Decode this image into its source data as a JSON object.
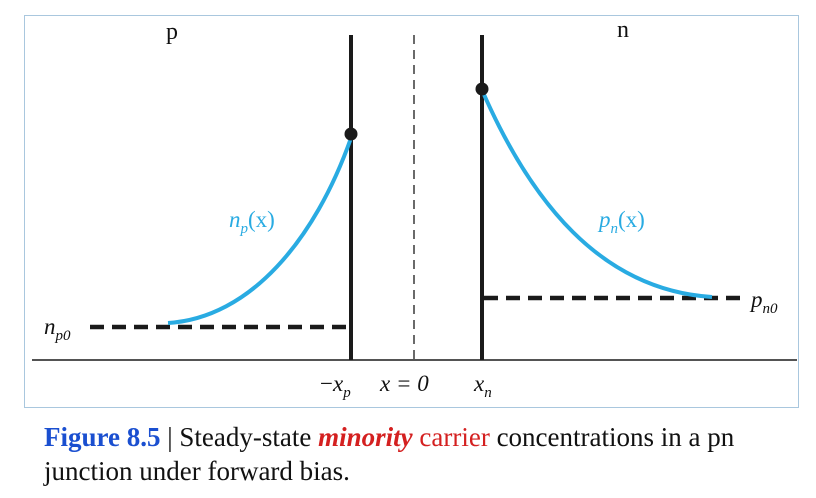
{
  "diagram": {
    "region_p": "p",
    "region_n": "n",
    "curve_p_label": {
      "base": "n",
      "sub": "p",
      "arg": "(x)"
    },
    "curve_n_label": {
      "base": "p",
      "sub": "n",
      "arg": "(x)"
    },
    "np0_label": {
      "base": "n",
      "sub": "p0"
    },
    "pn0_label": {
      "base": "p",
      "sub": "n0"
    },
    "xp_label": {
      "prefix": "−",
      "base": "x",
      "sub": "p"
    },
    "x0_label": "x = 0",
    "xn_label": {
      "base": "x",
      "sub": "n"
    },
    "colors": {
      "curve": "#29abe2",
      "line": "#1a1a1a",
      "frame": "#a9c7de"
    }
  },
  "caption": {
    "figure_number": "Figure 8.5",
    "separator": " | Steady-state ",
    "minority": "minority",
    "carrier": " carrier",
    "rest": " concentrations in a pn junction under forward bias."
  }
}
